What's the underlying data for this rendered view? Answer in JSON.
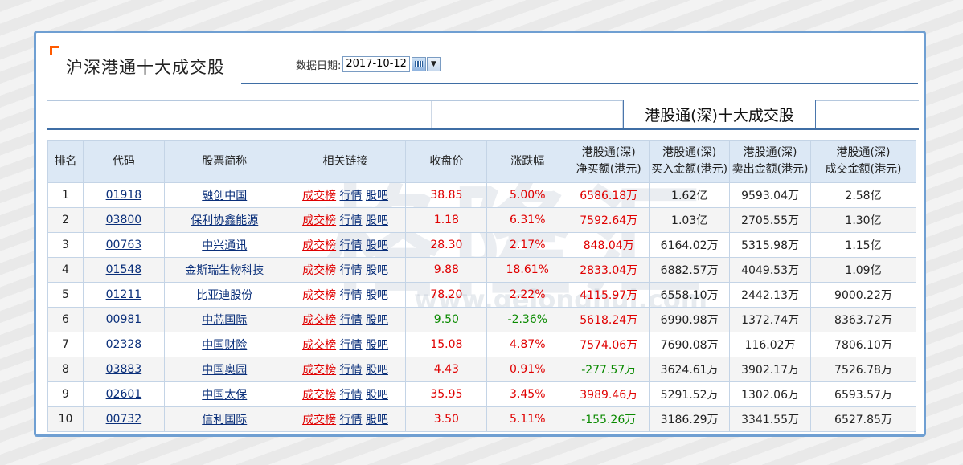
{
  "page_title": "沪深港通十大成交股",
  "date_label": "数据日期:",
  "date_value": "2017-10-12",
  "active_tab": "港股通(深)十大成交股",
  "watermark": "格隆汇",
  "watermark_url": "www.gelonghui.com",
  "columns": [
    "排名",
    "代码",
    "股票简称",
    "相关链接",
    "收盘价",
    "涨跌幅",
    "港股通(深)\n净买额(港元)",
    "港股通(深)\n买入金额(港元)",
    "港股通(深)\n卖出金额(港元)",
    "港股通(深)\n成交金额(港元)"
  ],
  "link_labels": [
    "成交榜",
    "行情",
    "股吧"
  ],
  "colors": {
    "accent_border": "#6f9fd2",
    "header_bg": "#dce8f5",
    "up": "#e00000",
    "down": "#0a8a00",
    "corner": "#ff5a00"
  },
  "rows": [
    {
      "rank": "1",
      "code": "01918",
      "name": "融创中国",
      "close": "38.85",
      "change": "5.00%",
      "net_buy": "6586.18万",
      "buy": "1.62亿",
      "sell": "9593.04万",
      "turnover": "2.58亿",
      "close_dir": "up",
      "change_dir": "up",
      "net_dir": "up"
    },
    {
      "rank": "2",
      "code": "03800",
      "name": "保利协鑫能源",
      "close": "1.18",
      "change": "6.31%",
      "net_buy": "7592.64万",
      "buy": "1.03亿",
      "sell": "2705.55万",
      "turnover": "1.30亿",
      "close_dir": "up",
      "change_dir": "up",
      "net_dir": "up"
    },
    {
      "rank": "3",
      "code": "00763",
      "name": "中兴通讯",
      "close": "28.30",
      "change": "2.17%",
      "net_buy": "848.04万",
      "buy": "6164.02万",
      "sell": "5315.98万",
      "turnover": "1.15亿",
      "close_dir": "up",
      "change_dir": "up",
      "net_dir": "up"
    },
    {
      "rank": "4",
      "code": "01548",
      "name": "金斯瑞生物科技",
      "close": "9.88",
      "change": "18.61%",
      "net_buy": "2833.04万",
      "buy": "6882.57万",
      "sell": "4049.53万",
      "turnover": "1.09亿",
      "close_dir": "up",
      "change_dir": "up",
      "net_dir": "up"
    },
    {
      "rank": "5",
      "code": "01211",
      "name": "比亚迪股份",
      "close": "78.20",
      "change": "2.22%",
      "net_buy": "4115.97万",
      "buy": "6558.10万",
      "sell": "2442.13万",
      "turnover": "9000.22万",
      "close_dir": "up",
      "change_dir": "up",
      "net_dir": "up"
    },
    {
      "rank": "6",
      "code": "00981",
      "name": "中芯国际",
      "close": "9.50",
      "change": "-2.36%",
      "net_buy": "5618.24万",
      "buy": "6990.98万",
      "sell": "1372.74万",
      "turnover": "8363.72万",
      "close_dir": "down",
      "change_dir": "down",
      "net_dir": "up"
    },
    {
      "rank": "7",
      "code": "02328",
      "name": "中国财险",
      "close": "15.08",
      "change": "4.87%",
      "net_buy": "7574.06万",
      "buy": "7690.08万",
      "sell": "116.02万",
      "turnover": "7806.10万",
      "close_dir": "up",
      "change_dir": "up",
      "net_dir": "up"
    },
    {
      "rank": "8",
      "code": "03883",
      "name": "中国奥园",
      "close": "4.43",
      "change": "0.91%",
      "net_buy": "-277.57万",
      "buy": "3624.61万",
      "sell": "3902.17万",
      "turnover": "7526.78万",
      "close_dir": "up",
      "change_dir": "up",
      "net_dir": "down"
    },
    {
      "rank": "9",
      "code": "02601",
      "name": "中国太保",
      "close": "35.95",
      "change": "3.45%",
      "net_buy": "3989.46万",
      "buy": "5291.52万",
      "sell": "1302.06万",
      "turnover": "6593.57万",
      "close_dir": "up",
      "change_dir": "up",
      "net_dir": "up"
    },
    {
      "rank": "10",
      "code": "00732",
      "name": "信利国际",
      "close": "3.50",
      "change": "5.11%",
      "net_buy": "-155.26万",
      "buy": "3186.29万",
      "sell": "3341.55万",
      "turnover": "6527.85万",
      "close_dir": "up",
      "change_dir": "up",
      "net_dir": "down"
    }
  ]
}
